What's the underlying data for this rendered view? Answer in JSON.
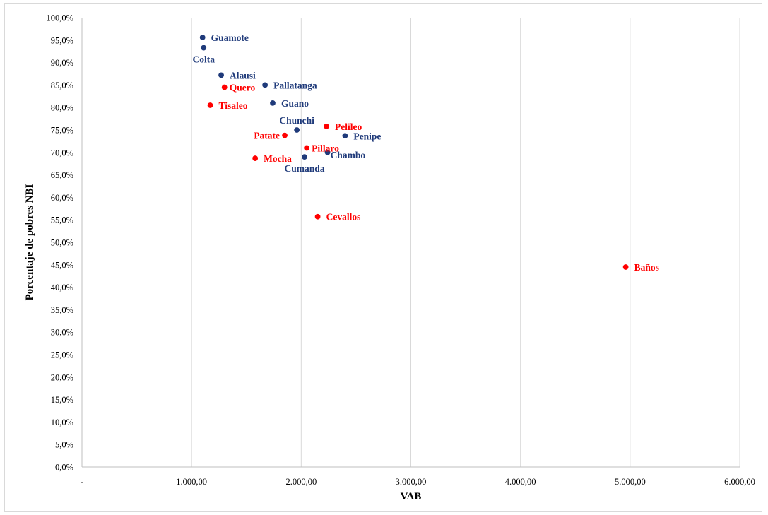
{
  "chart_data": {
    "type": "scatter",
    "title": "",
    "xlabel": "VAB",
    "ylabel": "Porcentaje de pobres NBI",
    "xlim": [
      0,
      6000
    ],
    "ylim": [
      0,
      100
    ],
    "grid": "vertical",
    "legend": "none",
    "x_ticks": [
      0,
      1000,
      2000,
      3000,
      4000,
      5000,
      6000
    ],
    "x_tick_labels": [
      "-",
      "1.000,00",
      "2.000,00",
      "3.000,00",
      "4.000,00",
      "5.000,00",
      "6.000,00"
    ],
    "y_ticks": [
      0,
      5,
      10,
      15,
      20,
      25,
      30,
      35,
      40,
      45,
      50,
      55,
      60,
      65,
      70,
      75,
      80,
      85,
      90,
      95,
      100
    ],
    "y_tick_labels": [
      "0,0%",
      "5,0%",
      "10,0%",
      "15,0%",
      "20,0%",
      "25,0%",
      "30,0%",
      "35,0%",
      "40,0%",
      "45,0%",
      "50,0%",
      "55,0%",
      "60,0%",
      "65,0%",
      "70,0%",
      "75,0%",
      "80,0%",
      "85,0%",
      "90,0%",
      "95,0%",
      "100,0%"
    ],
    "colors": {
      "blue": "#1f3a7a",
      "red": "#ff0000",
      "grid": "#d9d9d9",
      "axis": "#bfbfbf"
    },
    "series": [
      {
        "color_key": "blue",
        "points": [
          {
            "label": "Guamote",
            "x": 1100,
            "y": 95.6,
            "pos": "right"
          },
          {
            "label": "Colta",
            "x": 1110,
            "y": 93.3,
            "pos": "below"
          },
          {
            "label": "Alausi",
            "x": 1270,
            "y": 87.2,
            "pos": "right"
          },
          {
            "label": "Pallatanga",
            "x": 1670,
            "y": 85.0,
            "pos": "right"
          },
          {
            "label": "Guano",
            "x": 1740,
            "y": 81.0,
            "pos": "right"
          },
          {
            "label": "Chunchi",
            "x": 1960,
            "y": 75.0,
            "pos": "above"
          },
          {
            "label": "Penipe",
            "x": 2400,
            "y": 73.7,
            "pos": "right"
          },
          {
            "label": "Chambo",
            "x": 2240,
            "y": 70.0,
            "pos": "below-right"
          },
          {
            "label": "Cumanda",
            "x": 2030,
            "y": 69.0,
            "pos": "below"
          }
        ]
      },
      {
        "color_key": "red",
        "points": [
          {
            "label": "Quero",
            "x": 1300,
            "y": 84.5,
            "pos": "right-tight"
          },
          {
            "label": "Tisaleo",
            "x": 1170,
            "y": 80.5,
            "pos": "right"
          },
          {
            "label": "Pelileo",
            "x": 2230,
            "y": 75.8,
            "pos": "right"
          },
          {
            "label": "Patate",
            "x": 1850,
            "y": 73.8,
            "pos": "left"
          },
          {
            "label": "Pillaro",
            "x": 2050,
            "y": 71.0,
            "pos": "right-tight"
          },
          {
            "label": "Mocha",
            "x": 1580,
            "y": 68.7,
            "pos": "right"
          },
          {
            "label": "Cevallos",
            "x": 2150,
            "y": 55.7,
            "pos": "right"
          },
          {
            "label": "Baños",
            "x": 4960,
            "y": 44.5,
            "pos": "right"
          }
        ]
      }
    ]
  }
}
